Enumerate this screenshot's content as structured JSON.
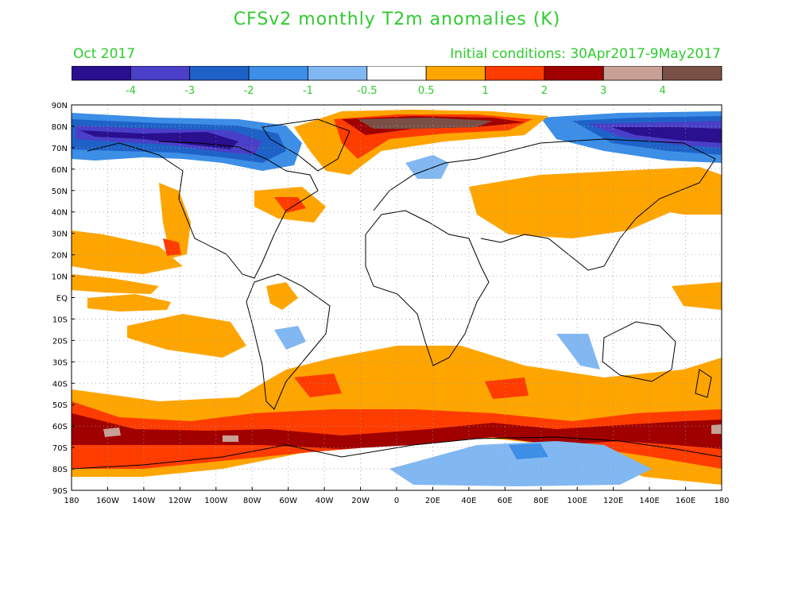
{
  "title": "CFSv2 monthly T2m anomalies (K)",
  "valid_month": "Oct 2017",
  "initial_conditions": "Initial conditions: 30Apr2017-9May2017",
  "colorbar": {
    "colors": [
      "#2a0f8f",
      "#4a3fc8",
      "#1e62c8",
      "#3c8ee6",
      "#82b8f2",
      "#ffffff",
      "#ffa500",
      "#ff3c00",
      "#a00000",
      "#c8a096",
      "#7a5046"
    ],
    "labels": [
      "-4",
      "-3",
      "-2",
      "-1",
      "-0.5",
      "0.5",
      "1",
      "2",
      "3",
      "4"
    ]
  },
  "map": {
    "lat_labels": [
      "90N",
      "80N",
      "70N",
      "60N",
      "50N",
      "40N",
      "30N",
      "20N",
      "10N",
      "EQ",
      "10S",
      "20S",
      "30S",
      "40S",
      "50S",
      "60S",
      "70S",
      "80S",
      "90S"
    ],
    "lon_labels": [
      "180",
      "160W",
      "140W",
      "120W",
      "100W",
      "80W",
      "60W",
      "40W",
      "20W",
      "0",
      "20E",
      "40E",
      "60E",
      "80E",
      "100E",
      "120E",
      "140E",
      "160E",
      "180"
    ],
    "label_color": "#000000"
  }
}
